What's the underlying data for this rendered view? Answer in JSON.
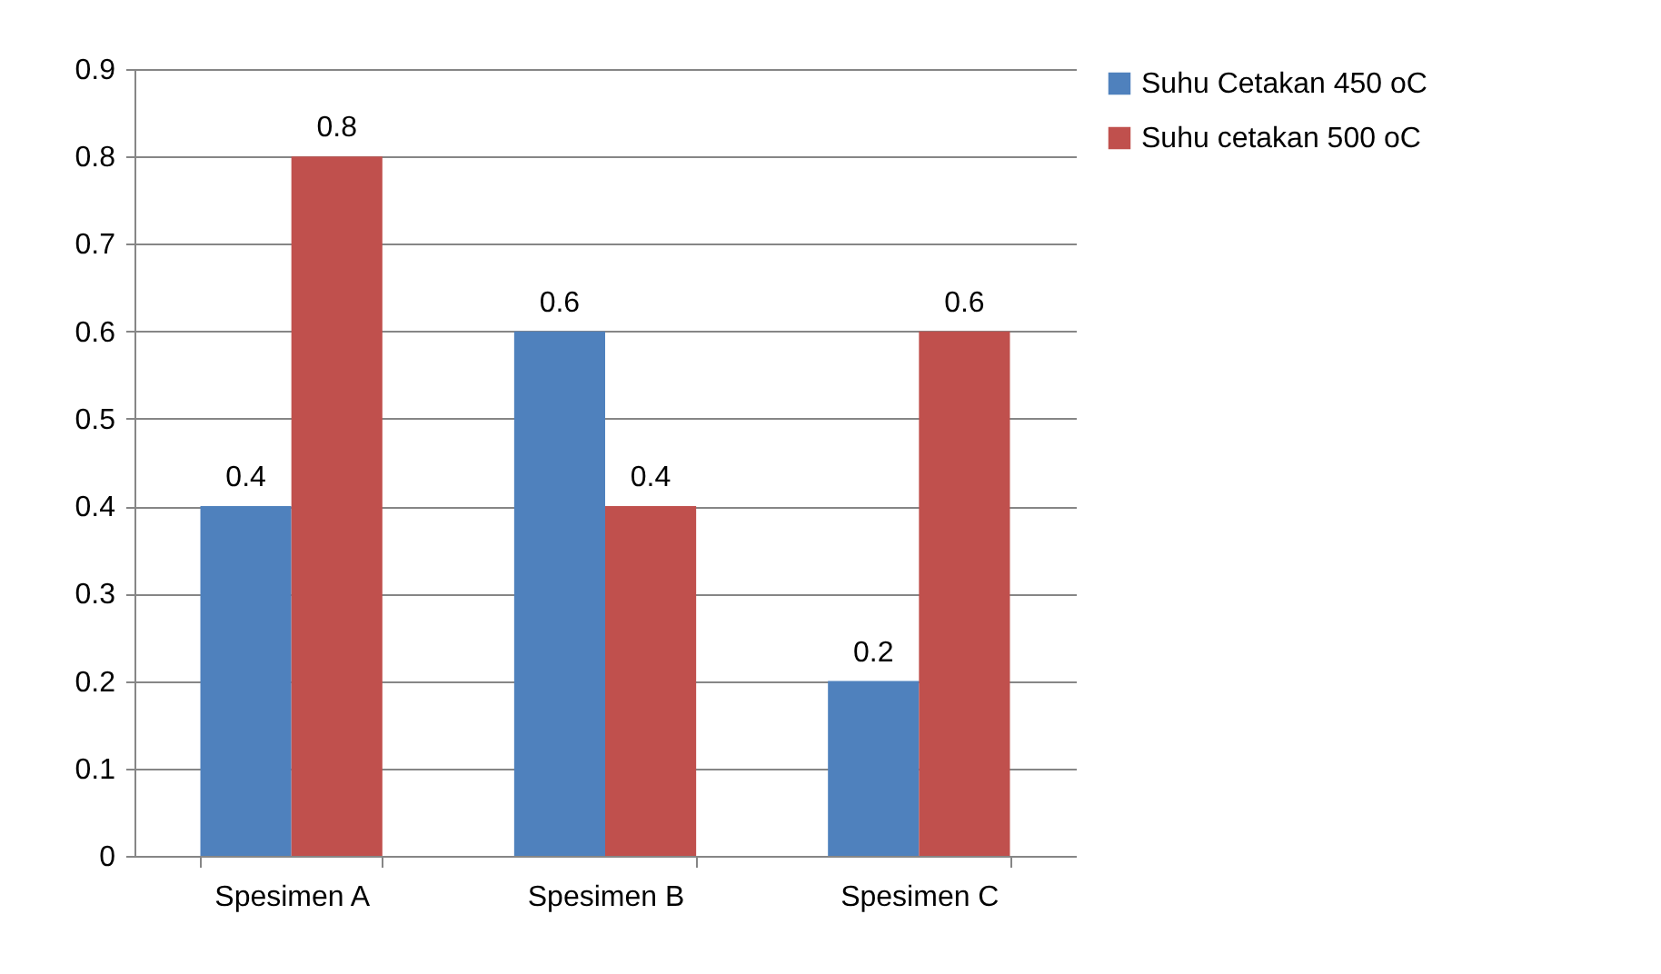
{
  "chart_data": {
    "type": "bar",
    "categories": [
      "Spesimen A",
      "Spesimen B",
      "Spesimen C"
    ],
    "series": [
      {
        "name": "Suhu Cetakan 450 oC",
        "color": "#4f81bd",
        "values": [
          0.4,
          0.6,
          0.2
        ]
      },
      {
        "name": "Suhu cetakan 500 oC",
        "color": "#c0504d",
        "values": [
          0.8,
          0.4,
          0.6
        ]
      }
    ],
    "ylim": [
      0,
      0.9
    ],
    "yticks": [
      0,
      0.1,
      0.2,
      0.3,
      0.4,
      0.5,
      0.6,
      0.7,
      0.8,
      0.9
    ],
    "grid": "y",
    "legend": "right",
    "data_labels": true
  }
}
